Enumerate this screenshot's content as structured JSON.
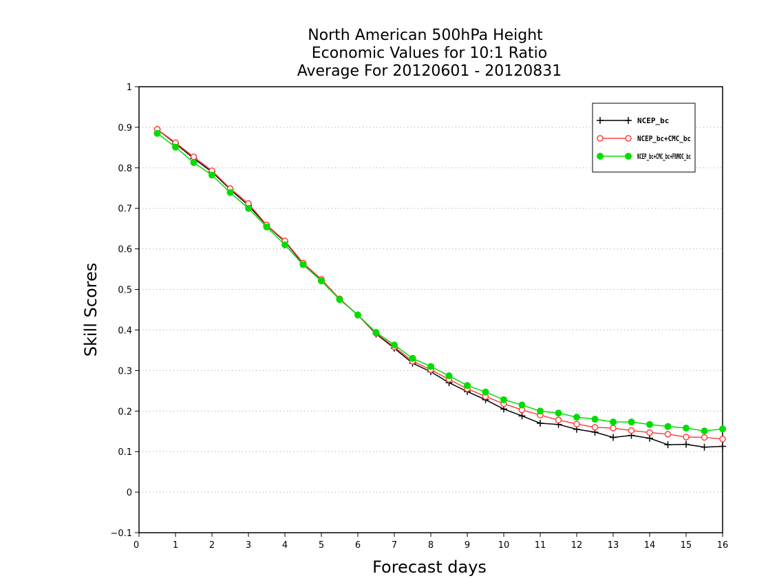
{
  "chart_data": {
    "type": "line",
    "title_lines": [
      "North American 500hPa Height",
      "Economic Values for 10:1 Ratio",
      "Average For 20120601 - 20120831"
    ],
    "xlabel": "Forecast days",
    "ylabel": "Skill Scores",
    "xlim": [
      0,
      16
    ],
    "ylim": [
      -0.1,
      1
    ],
    "x_ticks": [
      "0",
      "1",
      "2",
      "3",
      "4",
      "5",
      "6",
      "7",
      "8",
      "9",
      "10",
      "11",
      "12",
      "13",
      "14",
      "15",
      "16"
    ],
    "y_ticks": [
      "−0.1",
      "0",
      "0.1",
      "0.2",
      "0.3",
      "0.4",
      "0.5",
      "0.6",
      "0.7",
      "0.8",
      "0.9",
      "1"
    ],
    "grid": "horizontal-dotted",
    "legend_placement": "top-right",
    "x": [
      0.5,
      1,
      1.5,
      2,
      2.5,
      3,
      3.5,
      4,
      4.5,
      5,
      5.5,
      6,
      6.5,
      7,
      7.5,
      8,
      8.5,
      9,
      9.5,
      10,
      10.5,
      11,
      11.5,
      12,
      12.5,
      13,
      13.5,
      14,
      14.5,
      15,
      15.5,
      16
    ],
    "series": [
      {
        "name": "NCEP_bc",
        "color": "#000000",
        "marker": "plus",
        "values": [
          0.895,
          0.86,
          0.823,
          0.79,
          0.747,
          0.707,
          0.658,
          0.618,
          0.563,
          0.523,
          0.476,
          0.437,
          0.39,
          0.355,
          0.318,
          0.297,
          0.27,
          0.248,
          0.228,
          0.205,
          0.188,
          0.17,
          0.167,
          0.155,
          0.148,
          0.135,
          0.14,
          0.133,
          0.117,
          0.118,
          0.111,
          0.113
        ]
      },
      {
        "name": "NCEP_bc+CMC_bc",
        "color": "#ff4040",
        "marker": "open-circle",
        "values": [
          0.895,
          0.862,
          0.827,
          0.793,
          0.749,
          0.712,
          0.659,
          0.62,
          0.565,
          0.525,
          0.477,
          0.437,
          0.392,
          0.358,
          0.323,
          0.302,
          0.278,
          0.255,
          0.236,
          0.218,
          0.203,
          0.19,
          0.178,
          0.168,
          0.16,
          0.158,
          0.152,
          0.147,
          0.143,
          0.136,
          0.135,
          0.131
        ]
      },
      {
        "name": "NCEP_bc+CMC_bc+FNMOC_bc",
        "color": "#00dd00",
        "marker": "filled-circle",
        "values": [
          0.885,
          0.851,
          0.813,
          0.782,
          0.739,
          0.7,
          0.654,
          0.61,
          0.561,
          0.521,
          0.475,
          0.437,
          0.394,
          0.363,
          0.33,
          0.31,
          0.287,
          0.263,
          0.247,
          0.228,
          0.215,
          0.2,
          0.195,
          0.185,
          0.18,
          0.173,
          0.173,
          0.167,
          0.162,
          0.158,
          0.151,
          0.156
        ]
      }
    ]
  }
}
